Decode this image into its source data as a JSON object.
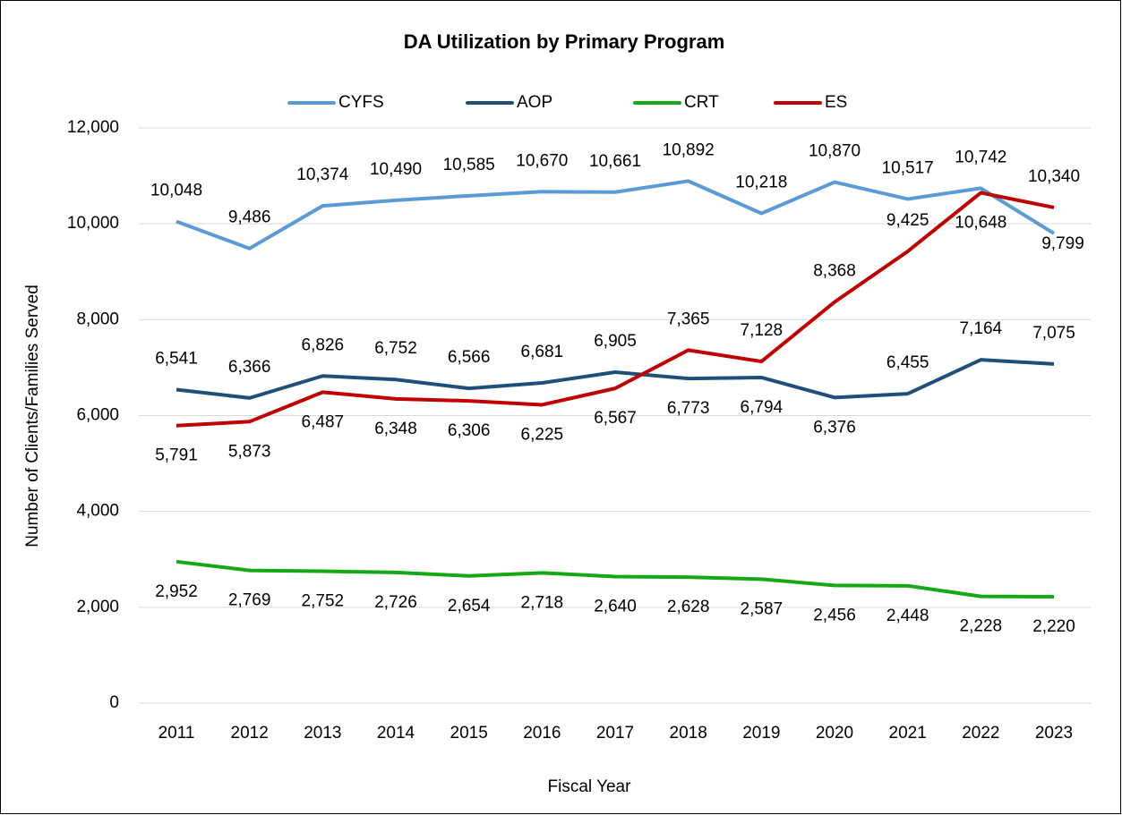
{
  "chart_data": {
    "type": "line",
    "title": "DA Utilization by Primary Program",
    "x_label": "Fiscal Year",
    "y_label": "Number of Clients/Families Served",
    "categories": [
      "2011",
      "2012",
      "2013",
      "2014",
      "2015",
      "2016",
      "2017",
      "2018",
      "2019",
      "2020",
      "2021",
      "2022",
      "2023"
    ],
    "series": [
      {
        "name": "CYFS",
        "color": "#5b9bd5",
        "values": [
          10048,
          9486,
          10374,
          10490,
          10585,
          10670,
          10661,
          10892,
          10218,
          10870,
          10517,
          10742,
          9799
        ],
        "value_labels": [
          "10,048",
          "9,486",
          "10,374",
          "10,490",
          "10,585",
          "10,670",
          "10,661",
          "10,892",
          "10,218",
          "10,870",
          "10,517",
          "10,742",
          "9,799"
        ]
      },
      {
        "name": "AOP",
        "color": "#1f4e79",
        "values": [
          6541,
          6366,
          6826,
          6752,
          6566,
          6681,
          6905,
          6773,
          6794,
          6376,
          6455,
          7164,
          7075
        ],
        "value_labels": [
          "6,541",
          "6,366",
          "6,826",
          "6,752",
          "6,566",
          "6,681",
          "6,905",
          "6,773",
          "6,794",
          "6,376",
          "6,455",
          "7,164",
          "7,075"
        ]
      },
      {
        "name": "CRT",
        "color": "#14a814",
        "values": [
          2952,
          2769,
          2752,
          2726,
          2654,
          2718,
          2640,
          2628,
          2587,
          2456,
          2448,
          2228,
          2220
        ],
        "value_labels": [
          "2,952",
          "2,769",
          "2,752",
          "2,726",
          "2,654",
          "2,718",
          "2,640",
          "2,628",
          "2,587",
          "2,456",
          "2,448",
          "2,228",
          "2,220"
        ]
      },
      {
        "name": "ES",
        "color": "#c00000",
        "values": [
          5791,
          5873,
          6487,
          6348,
          6306,
          6225,
          6567,
          7365,
          7128,
          8368,
          9425,
          10648,
          10340
        ],
        "value_labels": [
          "5,791",
          "5,873",
          "6,487",
          "6,348",
          "6,306",
          "6,225",
          "6,567",
          "7,365",
          "7,128",
          "8,368",
          "9,425",
          "10,648",
          "10,340"
        ]
      }
    ],
    "ylim": [
      0,
      12000
    ],
    "yticks": [
      0,
      {
        "value": 2000,
        "label": "2,000"
      },
      {
        "value": 4000,
        "label": "4,000"
      },
      {
        "value": 6000,
        "label": "6,000"
      },
      {
        "value": 8000,
        "label": "8,000"
      },
      {
        "value": 10000,
        "label": "10,000"
      },
      {
        "value": 12000,
        "label": "12,000"
      }
    ],
    "grid": true,
    "legend": "top"
  }
}
